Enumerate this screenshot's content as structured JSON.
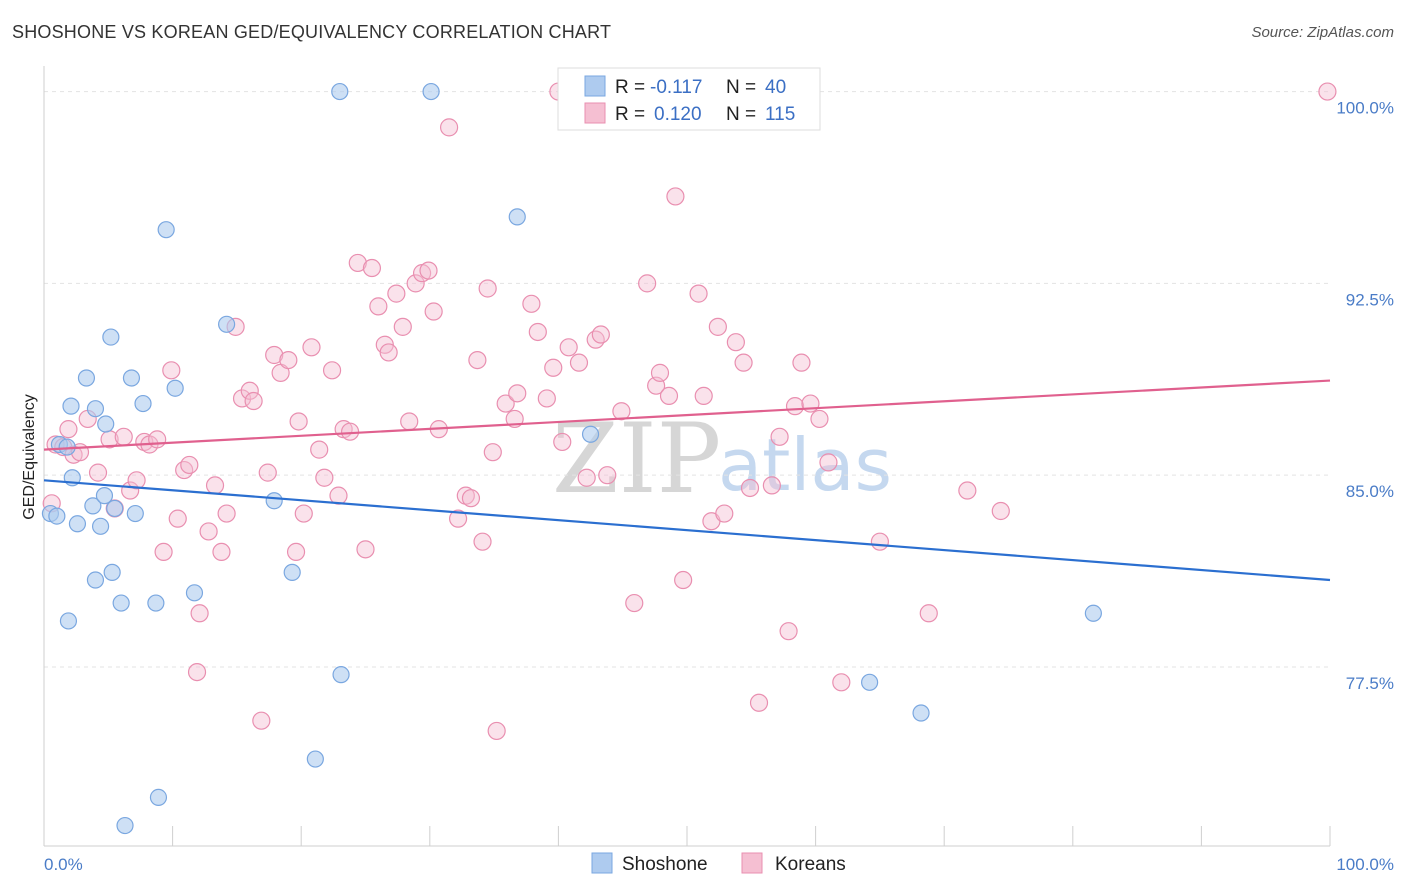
{
  "header": {
    "title": "SHOSHONE VS KOREAN GED/EQUIVALENCY CORRELATION CHART",
    "source": "Source: ZipAtlas.com"
  },
  "watermark": {
    "zip": "ZIP",
    "atlas": "atlas"
  },
  "chart_data": {
    "type": "scatter",
    "title": "SHOSHONE VS KOREAN GED/EQUIVALENCY CORRELATION CHART",
    "xlabel": "",
    "ylabel": "GED/Equivalency",
    "xlim": [
      0,
      100
    ],
    "ylim": [
      70.5,
      101
    ],
    "x_tick_labels": [
      "0.0%",
      "100.0%"
    ],
    "y_ticks": [
      77.5,
      85.0,
      92.5,
      100.0
    ],
    "y_tick_labels": [
      "77.5%",
      "85.0%",
      "92.5%",
      "100.0%"
    ],
    "grid": true,
    "legend": {
      "placement": "top-center",
      "rows": [
        {
          "r_label": "R = ",
          "r_value": "-0.117",
          "n_label": "N = ",
          "n_value": "40"
        },
        {
          "r_label": "R = ",
          "r_value": "0.120",
          "n_label": "N = ",
          "n_value": "115"
        }
      ]
    },
    "series": [
      {
        "name": "Shoshone",
        "color": "#7aa7e0",
        "fill": "#aecbef",
        "line_color": "#2b6fd0",
        "trend": [
          [
            0,
            84.8
          ],
          [
            100,
            80.9
          ]
        ],
        "points": [
          [
            0.5,
            83.5
          ],
          [
            1.2,
            86.2
          ],
          [
            2.1,
            87.7
          ],
          [
            1.8,
            86.1
          ],
          [
            3.3,
            88.8
          ],
          [
            4.0,
            87.6
          ],
          [
            4.8,
            87.0
          ],
          [
            5.2,
            90.4
          ],
          [
            6.8,
            88.8
          ],
          [
            7.7,
            87.8
          ],
          [
            9.5,
            94.6
          ],
          [
            10.2,
            88.4
          ],
          [
            2.2,
            84.9
          ],
          [
            3.8,
            83.8
          ],
          [
            4.7,
            84.2
          ],
          [
            5.5,
            83.7
          ],
          [
            7.1,
            83.5
          ],
          [
            1.0,
            83.4
          ],
          [
            2.6,
            83.1
          ],
          [
            4.4,
            83.0
          ],
          [
            5.3,
            81.2
          ],
          [
            4.0,
            80.9
          ],
          [
            6.0,
            80.0
          ],
          [
            8.7,
            80.0
          ],
          [
            11.7,
            80.4
          ],
          [
            1.9,
            79.3
          ],
          [
            14.2,
            90.9
          ],
          [
            17.9,
            84.0
          ],
          [
            19.3,
            81.2
          ],
          [
            23.0,
            100.0
          ],
          [
            30.1,
            100.0
          ],
          [
            36.8,
            95.1
          ],
          [
            42.5,
            86.6
          ],
          [
            23.1,
            77.2
          ],
          [
            21.1,
            73.9
          ],
          [
            8.9,
            72.4
          ],
          [
            6.3,
            71.3
          ],
          [
            64.2,
            76.9
          ],
          [
            68.2,
            75.7
          ],
          [
            81.6,
            79.6
          ]
        ]
      },
      {
        "name": "Koreans",
        "color": "#e98fb0",
        "fill": "#f5bfd2",
        "line_color": "#e0608e",
        "trend": [
          [
            0,
            86.0
          ],
          [
            100,
            88.7
          ]
        ],
        "points": [
          [
            0.6,
            83.9
          ],
          [
            0.9,
            86.2
          ],
          [
            1.5,
            86.1
          ],
          [
            1.9,
            86.8
          ],
          [
            2.3,
            85.8
          ],
          [
            2.8,
            85.9
          ],
          [
            3.4,
            87.2
          ],
          [
            4.2,
            85.1
          ],
          [
            5.1,
            86.4
          ],
          [
            5.5,
            83.7
          ],
          [
            6.2,
            86.5
          ],
          [
            6.7,
            84.4
          ],
          [
            7.2,
            84.8
          ],
          [
            7.8,
            86.3
          ],
          [
            8.2,
            86.2
          ],
          [
            8.8,
            86.4
          ],
          [
            9.3,
            82.0
          ],
          [
            9.9,
            89.1
          ],
          [
            10.4,
            83.3
          ],
          [
            10.9,
            85.2
          ],
          [
            11.3,
            85.4
          ],
          [
            12.1,
            79.6
          ],
          [
            11.9,
            77.3
          ],
          [
            12.8,
            82.8
          ],
          [
            13.3,
            84.6
          ],
          [
            13.8,
            82.0
          ],
          [
            14.2,
            83.5
          ],
          [
            14.9,
            90.8
          ],
          [
            15.4,
            88.0
          ],
          [
            16.0,
            88.3
          ],
          [
            16.3,
            87.9
          ],
          [
            16.9,
            75.4
          ],
          [
            17.4,
            85.1
          ],
          [
            17.9,
            89.7
          ],
          [
            18.4,
            89.0
          ],
          [
            19.0,
            89.5
          ],
          [
            19.6,
            82.0
          ],
          [
            19.8,
            87.1
          ],
          [
            20.2,
            83.5
          ],
          [
            20.8,
            90.0
          ],
          [
            21.4,
            86.0
          ],
          [
            21.8,
            84.9
          ],
          [
            22.4,
            89.1
          ],
          [
            22.9,
            84.2
          ],
          [
            23.3,
            86.8
          ],
          [
            23.8,
            86.7
          ],
          [
            24.4,
            93.3
          ],
          [
            25.0,
            82.1
          ],
          [
            25.5,
            93.1
          ],
          [
            26.0,
            91.6
          ],
          [
            26.5,
            90.1
          ],
          [
            26.8,
            89.8
          ],
          [
            27.4,
            92.1
          ],
          [
            27.9,
            90.8
          ],
          [
            28.4,
            87.1
          ],
          [
            28.9,
            92.5
          ],
          [
            29.4,
            92.9
          ],
          [
            29.9,
            93.0
          ],
          [
            30.3,
            91.4
          ],
          [
            30.7,
            86.8
          ],
          [
            31.5,
            98.6
          ],
          [
            32.2,
            83.3
          ],
          [
            32.8,
            84.2
          ],
          [
            33.2,
            84.1
          ],
          [
            33.7,
            89.5
          ],
          [
            34.1,
            82.4
          ],
          [
            34.5,
            92.3
          ],
          [
            34.9,
            85.9
          ],
          [
            35.2,
            75.0
          ],
          [
            35.9,
            87.8
          ],
          [
            36.6,
            87.2
          ],
          [
            36.8,
            88.2
          ],
          [
            37.9,
            91.7
          ],
          [
            38.4,
            90.6
          ],
          [
            39.1,
            88.0
          ],
          [
            39.6,
            89.2
          ],
          [
            40.3,
            86.3
          ],
          [
            40.8,
            90.0
          ],
          [
            41.6,
            89.4
          ],
          [
            42.2,
            84.9
          ],
          [
            42.9,
            90.3
          ],
          [
            43.3,
            90.5
          ],
          [
            43.8,
            85.0
          ],
          [
            44.9,
            87.5
          ],
          [
            45.9,
            80.0
          ],
          [
            46.9,
            92.5
          ],
          [
            47.6,
            88.5
          ],
          [
            47.9,
            89.0
          ],
          [
            48.6,
            88.1
          ],
          [
            49.1,
            95.9
          ],
          [
            49.7,
            80.9
          ],
          [
            50.9,
            92.1
          ],
          [
            51.3,
            88.1
          ],
          [
            51.9,
            83.2
          ],
          [
            52.4,
            90.8
          ],
          [
            52.9,
            83.5
          ],
          [
            53.8,
            90.2
          ],
          [
            54.4,
            89.4
          ],
          [
            54.9,
            84.5
          ],
          [
            55.6,
            76.1
          ],
          [
            56.6,
            84.6
          ],
          [
            57.2,
            86.5
          ],
          [
            57.9,
            78.9
          ],
          [
            58.4,
            87.7
          ],
          [
            58.9,
            89.4
          ],
          [
            59.6,
            87.8
          ],
          [
            60.3,
            87.2
          ],
          [
            61.0,
            85.5
          ],
          [
            62.0,
            76.9
          ],
          [
            65.0,
            82.4
          ],
          [
            68.8,
            79.6
          ],
          [
            71.8,
            84.4
          ],
          [
            74.4,
            83.6
          ],
          [
            40.0,
            100.0
          ],
          [
            99.8,
            100.0
          ]
        ]
      }
    ]
  }
}
